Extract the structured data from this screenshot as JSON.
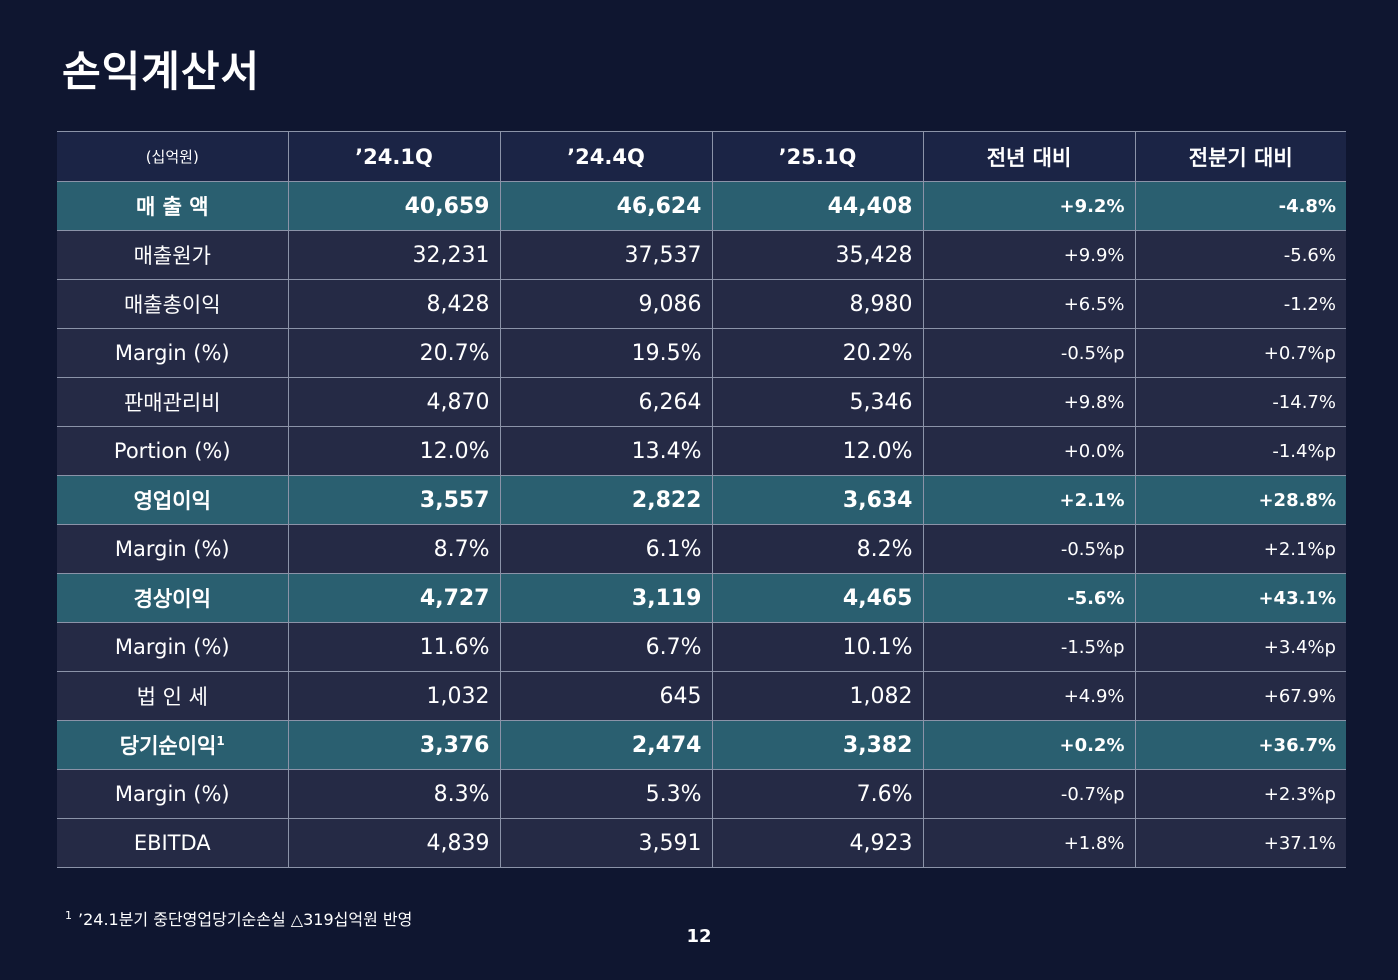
{
  "title": "손익계산서",
  "table": {
    "unit": "(십억원)",
    "columns": [
      "’24.1Q",
      "’24.4Q",
      "’25.1Q",
      "전년 대비",
      "전분기 대비"
    ],
    "rows": [
      {
        "label": "매 출 액",
        "values": [
          "40,659",
          "46,624",
          "44,408",
          "+9.2%",
          "-4.8%"
        ]
      },
      {
        "label": "매출원가",
        "values": [
          "32,231",
          "37,537",
          "35,428",
          "+9.9%",
          "-5.6%"
        ]
      },
      {
        "label": "매출총이익",
        "values": [
          "8,428",
          "9,086",
          "8,980",
          "+6.5%",
          "-1.2%"
        ]
      },
      {
        "label": "Margin (%)",
        "values": [
          "20.7%",
          "19.5%",
          "20.2%",
          "-0.5%p",
          "+0.7%p"
        ]
      },
      {
        "label": "판매관리비",
        "values": [
          "4,870",
          "6,264",
          "5,346",
          "+9.8%",
          "-14.7%"
        ]
      },
      {
        "label": "Portion (%)",
        "values": [
          "12.0%",
          "13.4%",
          "12.0%",
          "+0.0%",
          "-1.4%p"
        ]
      },
      {
        "label": "영업이익",
        "values": [
          "3,557",
          "2,822",
          "3,634",
          "+2.1%",
          "+28.8%"
        ]
      },
      {
        "label": "Margin (%)",
        "values": [
          "8.7%",
          "6.1%",
          "8.2%",
          "-0.5%p",
          "+2.1%p"
        ]
      },
      {
        "label": "경상이익",
        "values": [
          "4,727",
          "3,119",
          "4,465",
          "-5.6%",
          "+43.1%"
        ]
      },
      {
        "label": "Margin (%)",
        "values": [
          "11.6%",
          "6.7%",
          "10.1%",
          "-1.5%p",
          "+3.4%p"
        ]
      },
      {
        "label": "법 인 세",
        "values": [
          "1,032",
          "645",
          "1,082",
          "+4.9%",
          "+67.9%"
        ]
      },
      {
        "label": "당기순이익",
        "footnote_mark": "1",
        "values": [
          "3,376",
          "2,474",
          "3,382",
          "+0.2%",
          "+36.7%"
        ]
      },
      {
        "label": "Margin (%)",
        "values": [
          "8.3%",
          "5.3%",
          "7.6%",
          "-0.7%p",
          "+2.3%p"
        ]
      },
      {
        "label": "EBITDA",
        "values": [
          "4,839",
          "3,591",
          "4,923",
          "+1.8%",
          "+37.1%"
        ]
      }
    ]
  },
  "footnote": {
    "mark": "1",
    "text": "’24.1분기 중단영업당기순손실 △319십억원 반영"
  },
  "page_number": "12",
  "colors": {
    "background": "#0f1630",
    "header_row": "#1b2445",
    "body_row": "#252a45",
    "highlight_row": "#2a5f70",
    "grid": "#8b93a8"
  }
}
